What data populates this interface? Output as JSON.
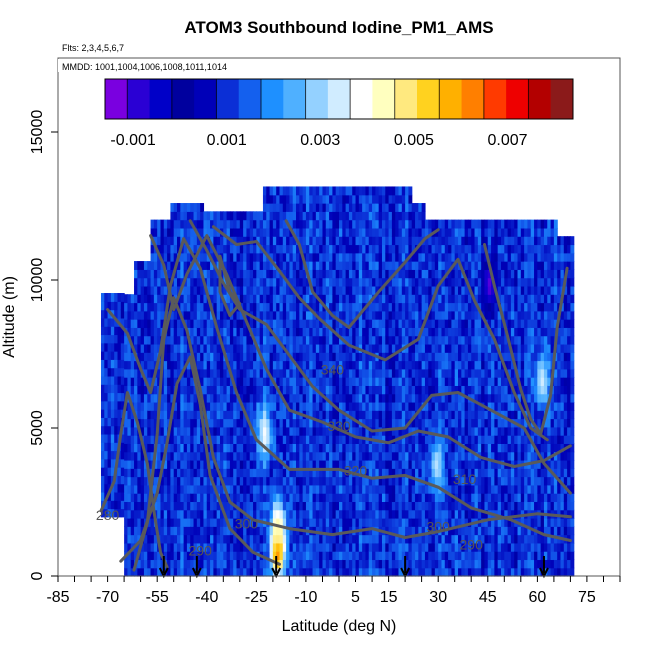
{
  "chart_data": {
    "type": "heatmap",
    "title": "ATOM3 Southbound Iodine_PM1_AMS",
    "subtitle_flights": "Flts: 2,3,4,5,6,7",
    "subtitle_dates": "MMDD: 1001,1004,1006,1008,1011,1014",
    "xlabel": "Latitude (deg N)",
    "ylabel": "Altitude (m)",
    "xlim": [
      -85,
      85
    ],
    "ylim": [
      0,
      17500
    ],
    "x_ticks": [
      -85,
      -70,
      -55,
      -40,
      -25,
      -10,
      5,
      15,
      30,
      45,
      60,
      75
    ],
    "y_ticks": [
      0,
      5000,
      10000,
      15000
    ],
    "colorbar": {
      "min": -0.0016,
      "max": 0.0084,
      "ticks": [
        -0.001,
        0.001,
        0.003,
        0.005,
        0.007
      ],
      "tick_labels": [
        "-0.001",
        "0.001",
        "0.003",
        "0.005",
        "0.007"
      ],
      "colors": [
        "#7a00e0",
        "#2a00d4",
        "#0000c8",
        "#00009e",
        "#0000b8",
        "#0b2fd6",
        "#1460ee",
        "#1e90ff",
        "#4fb0ff",
        "#94d1ff",
        "#d0ecff",
        "#ffffff",
        "#ffffbf",
        "#ffe97f",
        "#ffd21f",
        "#ffb000",
        "#ff7f00",
        "#ff3a00",
        "#ee0000",
        "#b30000",
        "#8b1a1a"
      ]
    },
    "contour_levels": [
      280,
      290,
      300,
      310,
      320,
      330,
      340
    ],
    "contour_labels": [
      {
        "text": "340",
        "lat": -2,
        "alt": 6800
      },
      {
        "text": "330",
        "lat": 0,
        "alt": 4900
      },
      {
        "text": "320",
        "lat": 5,
        "alt": 3400
      },
      {
        "text": "310",
        "lat": 38,
        "alt": 3100
      },
      {
        "text": "300",
        "lat": 30,
        "alt": 1500
      },
      {
        "text": "290",
        "lat": 40,
        "alt": 900
      },
      {
        "text": "280",
        "lat": -70,
        "alt": 1900
      },
      {
        "text": "300",
        "lat": -28,
        "alt": 1600
      },
      {
        "text": "290",
        "lat": -42,
        "alt": 700
      }
    ],
    "hotspots": [
      {
        "lat": -19,
        "alt": 800,
        "value": 0.0074
      },
      {
        "lat": -19,
        "alt": 1500,
        "value": 0.0045
      },
      {
        "lat": -23,
        "alt": 4700,
        "value": 0.0038
      },
      {
        "lat": 29,
        "alt": 3600,
        "value": 0.0032
      },
      {
        "lat": 61,
        "alt": 6500,
        "value": 0.0034
      },
      {
        "lat": 45,
        "alt": 9700,
        "value": -0.0014
      }
    ],
    "flight_markers_lat": [
      -53,
      -43,
      -19,
      20,
      62
    ]
  }
}
